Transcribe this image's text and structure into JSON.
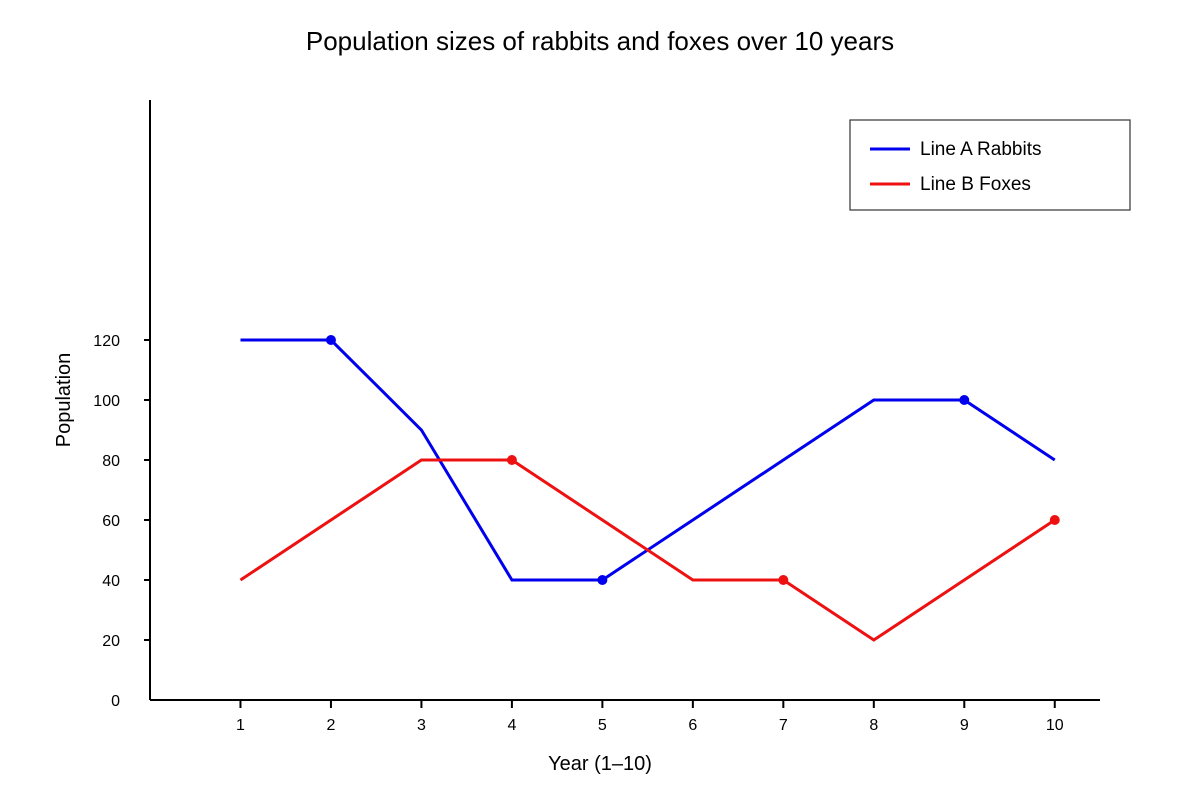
{
  "chart_data": {
    "type": "line",
    "title": "Population sizes of rabbits and foxes over 10 years",
    "xlabel": "Year (1–10)",
    "ylabel": "Population",
    "x": [
      1,
      2,
      3,
      4,
      5,
      6,
      7,
      8,
      9,
      10
    ],
    "x_tick_labels": [
      "1",
      "2",
      "3",
      "4",
      "5",
      "6",
      "7",
      "8",
      "9",
      "10"
    ],
    "y_ticks": [
      0,
      20,
      40,
      60,
      80,
      100,
      120
    ],
    "y_tick_labels": [
      "0",
      "20",
      "40",
      "60",
      "80",
      "100",
      "120"
    ],
    "xlim": [
      0,
      10.5
    ],
    "ylim": [
      0,
      200
    ],
    "grid": false,
    "legend_position": "top-right",
    "series": [
      {
        "name": "Line A Rabbits",
        "color": "#0000ee",
        "values": [
          120,
          120,
          90,
          40,
          40,
          60,
          80,
          100,
          100,
          80
        ],
        "markers_at": [
          2,
          5,
          9
        ]
      },
      {
        "name": "Line B Foxes",
        "color": "#ee1111",
        "values": [
          40,
          60,
          80,
          80,
          60,
          40,
          40,
          20,
          40,
          60
        ],
        "markers_at": [
          4,
          7,
          10
        ]
      }
    ]
  }
}
